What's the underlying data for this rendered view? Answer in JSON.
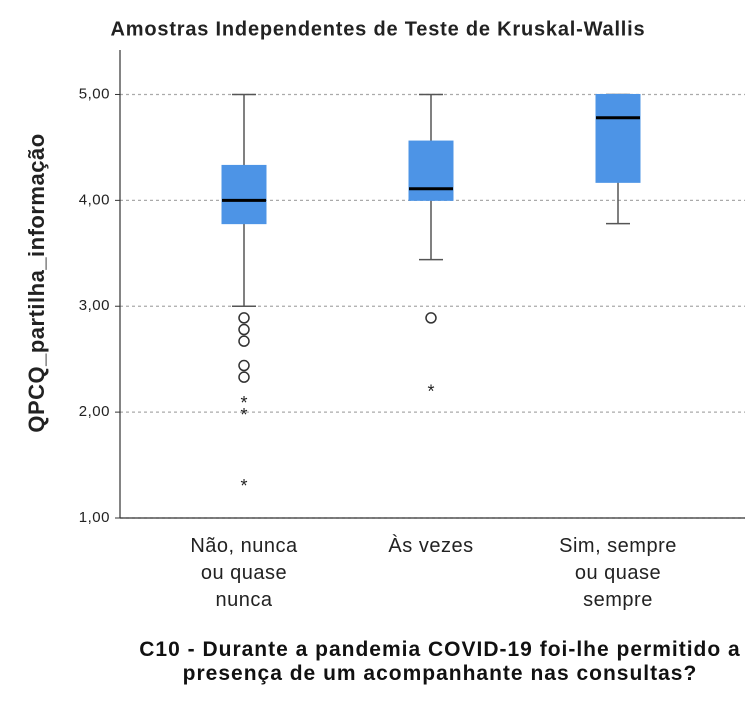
{
  "chart_data": {
    "type": "boxplot",
    "title": "Amostras Independentes de Teste de Kruskal-Wallis",
    "ylabel": "QPCQ_partilha_informação",
    "xlabel": "C10 - Durante a pandemia COVID-19 foi-lhe permitido a presença de um acompanhante nas consultas?",
    "categories": [
      "Não, nunca ou quase nunca",
      "Às vezes",
      "Sim, sempre ou quase sempre"
    ],
    "color": "#4d94e6",
    "boxes": [
      {
        "whislo": 3.0,
        "q1": 3.78,
        "med": 4.0,
        "q3": 4.33,
        "whishi": 5.0,
        "outliers": [
          2.89,
          2.78,
          2.67,
          2.44,
          2.33
        ],
        "extremes": [
          2.11,
          2.0,
          1.33
        ]
      },
      {
        "whislo": 3.44,
        "q1": 4.0,
        "med": 4.11,
        "q3": 4.56,
        "whishi": 5.0,
        "outliers": [
          2.89
        ],
        "extremes": [
          2.22
        ]
      },
      {
        "whislo": 3.78,
        "q1": 4.17,
        "med": 4.78,
        "q3": 5.0,
        "whishi": 5.0,
        "outliers": [],
        "extremes": []
      }
    ],
    "ylim": [
      1,
      5.42
    ],
    "yticks": [
      {
        "value": 1,
        "label": "1,00"
      },
      {
        "value": 2,
        "label": "2,00"
      },
      {
        "value": 3,
        "label": "3,00"
      },
      {
        "value": 4,
        "label": "4,00"
      },
      {
        "value": 5,
        "label": "5,00"
      }
    ],
    "grid": true
  }
}
